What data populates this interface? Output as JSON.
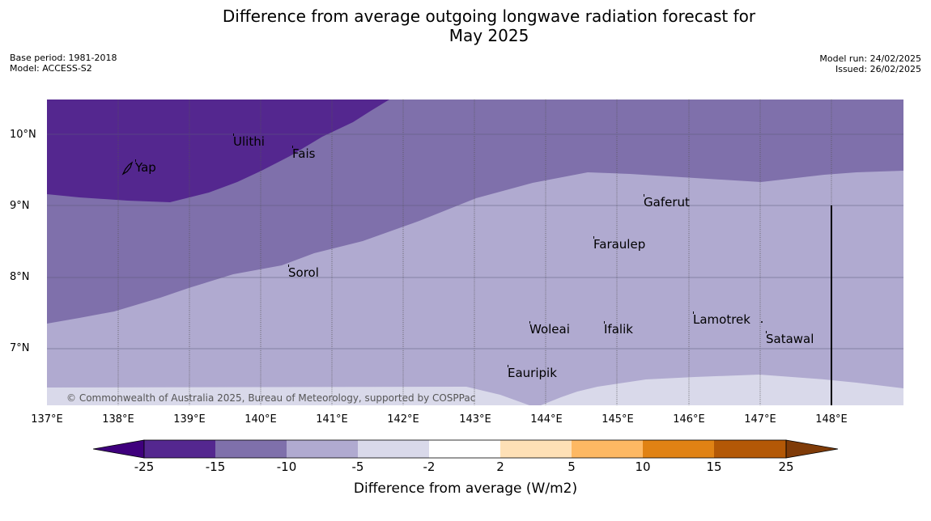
{
  "title": "Difference from average outgoing longwave radiation forecast for",
  "subtitle": "May 2025",
  "meta_left": {
    "base_period": "Base period: 1981-2018",
    "model": "Model: ACCESS-S2"
  },
  "meta_right": {
    "model_run": "Model run: 24/02/2025",
    "issued": "Issued: 26/02/2025"
  },
  "map": {
    "lat_labels": [
      "10°N",
      "9°N",
      "8°N",
      "7°N"
    ],
    "lon_labels": [
      "137°E",
      "138°E",
      "139°E",
      "140°E",
      "141°E",
      "142°E",
      "143°E",
      "144°E",
      "145°E",
      "146°E",
      "147°E",
      "148°E"
    ],
    "places": [
      "Yap",
      "Ulithi",
      "Fais",
      "Gaferut",
      "Faraulep",
      "Sorol",
      "Woleai",
      "Ifalik",
      "Lamotrek",
      "Satawal",
      "Eauripik"
    ],
    "copyright": "© Commonwealth of Australia 2025, Bureau of Meteorology, supported by COSPPac",
    "colors": {
      "-25 to -15": "#54278f",
      "-15 to -10": "#7f70ab",
      "-10 to -5": "#b0aad0",
      "-5 to -2": "#d9d9ea"
    }
  },
  "colorbar": {
    "ticks": [
      "-25",
      "-15",
      "-10",
      "-5",
      "-2",
      "2",
      "5",
      "10",
      "15",
      "25"
    ],
    "colors": [
      "#3f007d",
      "#54278f",
      "#7f70ab",
      "#b0aad0",
      "#d9d9ea",
      "#ffffff",
      "#fee0b6",
      "#fdb863",
      "#e08214",
      "#b35806",
      "#7f3b08"
    ],
    "label": "Difference from average (W/m2)"
  }
}
